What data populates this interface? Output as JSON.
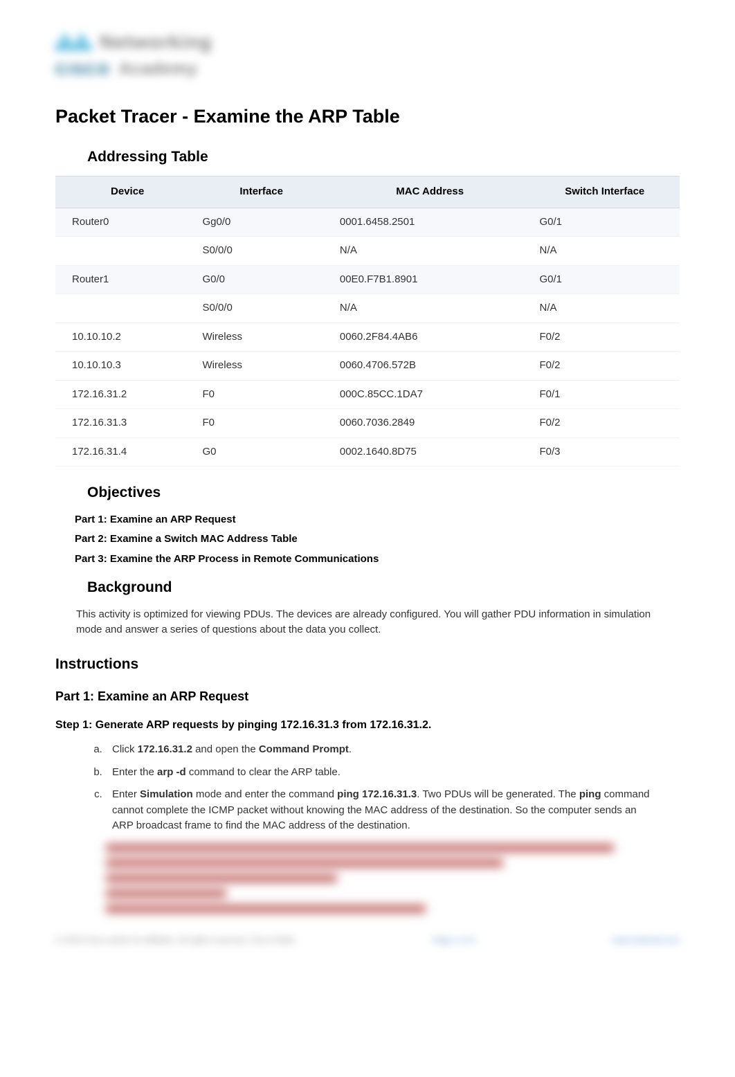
{
  "logo": {
    "word1": "Networking",
    "brand": "CISCO",
    "word2": "Academy",
    "bar_color": "#2aa8d6"
  },
  "doc_title": "Packet Tracer - Examine the ARP Table",
  "sections": {
    "addressing": "Addressing Table",
    "objectives": "Objectives",
    "background": "Background",
    "instructions": "Instructions",
    "part1_heading": "Part 1: Examine an ARP Request"
  },
  "table": {
    "header_bg": "#e9eef4",
    "row_alt_bg": "#f6f8fb",
    "border_color": "#d5dbe2",
    "columns": [
      "Device",
      "Interface",
      "MAC Address",
      "Switch Interface"
    ],
    "rows": [
      [
        "Router0",
        "Gg0/0",
        "0001.6458.2501",
        "G0/1"
      ],
      [
        "",
        "S0/0/0",
        "N/A",
        "N/A"
      ],
      [
        "Router1",
        "G0/0",
        "00E0.F7B1.8901",
        "G0/1"
      ],
      [
        "",
        "S0/0/0",
        "N/A",
        "N/A"
      ],
      [
        "10.10.10.2",
        "Wireless",
        "0060.2F84.4AB6",
        "F0/2"
      ],
      [
        "10.10.10.3",
        "Wireless",
        "0060.4706.572B",
        "F0/2"
      ],
      [
        "172.16.31.2",
        "F0",
        "000C.85CC.1DA7",
        "F0/1"
      ],
      [
        "172.16.31.3",
        "F0",
        "0060.7036.2849",
        "F0/2"
      ],
      [
        "172.16.31.4",
        "G0",
        "0002.1640.8D75",
        "F0/3"
      ]
    ]
  },
  "objectives": {
    "p1": "Part 1: Examine an ARP Request",
    "p2": "Part 2: Examine a Switch MAC Address Table",
    "p3": "Part 3: Examine the ARP Process in Remote Communications"
  },
  "background_text": "This activity is optimized for viewing PDUs. The devices are already configured. You will gather PDU information in simulation mode and answer a series of questions about the data you collect.",
  "step1": {
    "title": "Step 1: Generate ARP requests by pinging 172.16.31.3 from 172.16.31.2.",
    "a_pre": "Click ",
    "a_bold1": "172.16.31.2",
    "a_mid": " and open the ",
    "a_bold2": "Command Prompt",
    "a_post": ".",
    "b_pre": "Enter the ",
    "b_bold": "arp -d",
    "b_post": " command to clear the ARP table.",
    "c_pre": "Enter ",
    "c_bold1": "Simulation",
    "c_mid1": " mode and enter the command ",
    "c_bold2": "ping 172.16.31.3",
    "c_mid2": ". Two PDUs will be generated. The ",
    "c_bold3": "ping",
    "c_post": " command cannot complete the ICMP packet without knowing the MAC address of the destination. So the computer sends an ARP broadcast frame to find the MAC address of the destination."
  },
  "blurred": {
    "line_color": "#c36a6a",
    "widths": [
      "92%",
      "72%",
      "42%",
      "22%",
      "58%"
    ]
  },
  "footer": {
    "left": "© 2019 Cisco and/or its affiliates. All rights reserved. Cisco Public",
    "page": "Page 1 of 3",
    "link": "www.netacad.com"
  },
  "colors": {
    "heading": "#000000",
    "body": "#333333",
    "background": "#ffffff"
  }
}
